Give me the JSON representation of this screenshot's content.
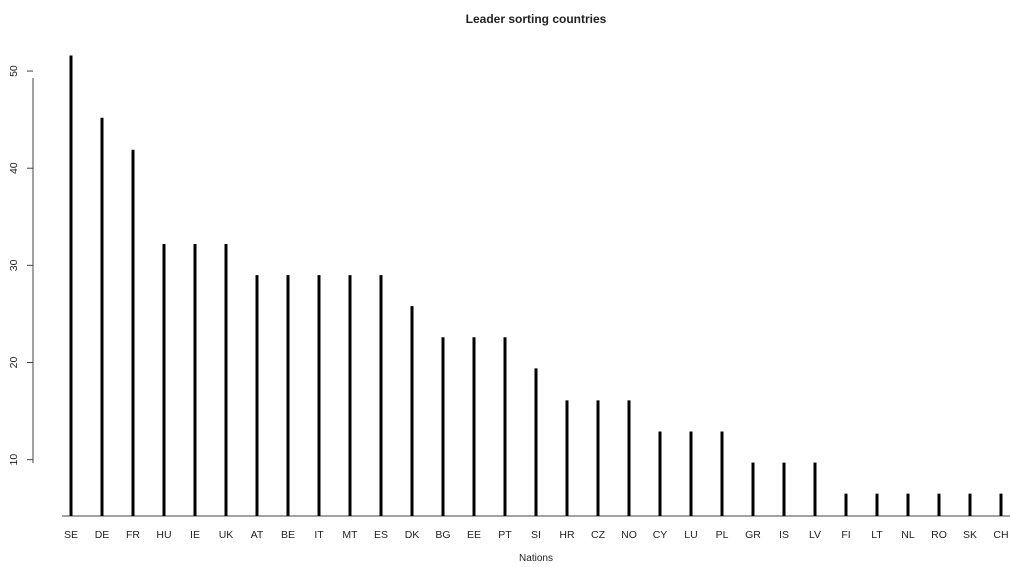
{
  "chart_data": {
    "type": "bar",
    "title": "Leader sorting countries",
    "xlabel": "Nations",
    "ylabel": "",
    "categories": [
      "SE",
      "DE",
      "FR",
      "HU",
      "IE",
      "UK",
      "AT",
      "BE",
      "IT",
      "MT",
      "ES",
      "DK",
      "BG",
      "EE",
      "PT",
      "SI",
      "HR",
      "CZ",
      "NO",
      "CY",
      "LU",
      "PL",
      "GR",
      "IS",
      "LV",
      "FI",
      "LT",
      "NL",
      "RO",
      "SK",
      "CH"
    ],
    "values": [
      51.6,
      45.2,
      41.9,
      32.2,
      32.2,
      32.2,
      29.0,
      29.0,
      29.0,
      29.0,
      29.0,
      25.8,
      22.6,
      22.6,
      22.6,
      19.4,
      16.1,
      16.1,
      16.1,
      12.9,
      12.9,
      12.9,
      9.7,
      9.7,
      9.7,
      6.5,
      6.5,
      6.5,
      6.5,
      6.5,
      6.5
    ],
    "yticks": [
      10,
      20,
      30,
      40,
      50
    ],
    "ylim": [
      4.2,
      53.3
    ],
    "grid": false,
    "bar_color": "#000000"
  }
}
